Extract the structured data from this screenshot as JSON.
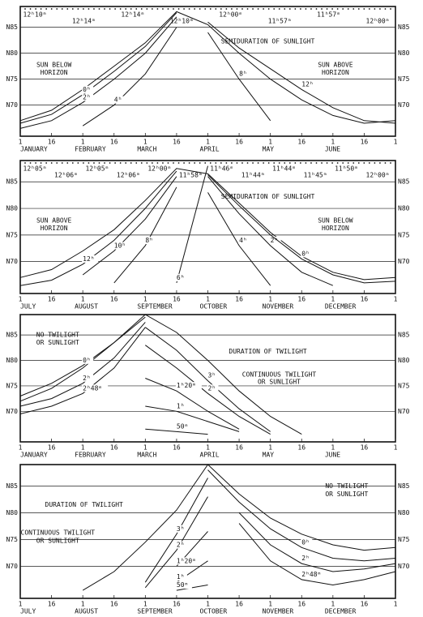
{
  "chart_data": [
    {
      "type": "line",
      "title": "SEMIDURATION OF SUNLIGHT",
      "annotations": [
        "SUN BELOW",
        "HORIZON",
        "SUN ABOVE",
        "HORIZON"
      ],
      "time_labels": [
        "12ʰ10ᵐ",
        "12ʰ14ᵐ",
        "12ʰ14ᵐ",
        "12ʰ10ᵐ",
        "12ʰ00ᵐ",
        "11ʰ57ᵐ",
        "11ʰ57ᵐ",
        "12ʰ00ᵐ"
      ],
      "categories": [
        "1",
        "16",
        "1",
        "16",
        "1",
        "16",
        "1",
        "16",
        "1",
        "16",
        "1",
        "16",
        "1"
      ],
      "months": [
        "JANUARY",
        "FEBRUARY",
        "MARCH",
        "APRIL",
        "MAY",
        "JUNE"
      ],
      "ylim": [
        64,
        89
      ],
      "yticks": [
        {
          "value": 70,
          "label": "N70"
        },
        {
          "value": 75,
          "label": "N75"
        },
        {
          "value": 80,
          "label": "N80"
        },
        {
          "value": 85,
          "label": "N85"
        }
      ],
      "series": [
        {
          "color": "#111111",
          "values": [
            67,
            69,
            73,
            77.5,
            82,
            88,
            85.5,
            80,
            75,
            71,
            68,
            66.5,
            67
          ]
        },
        {
          "name": "0ʰ",
          "color": "#111111",
          "values": [
            66.5,
            68.2,
            72,
            76.5,
            81.3,
            87.8,
            null,
            null,
            null,
            null,
            null,
            null,
            null
          ]
        },
        {
          "name": "2ʰ",
          "color": "#111111",
          "values": [
            65.5,
            67,
            70.5,
            75,
            80,
            87,
            null,
            null,
            null,
            null,
            null,
            null,
            null
          ]
        },
        {
          "name": "4ʰ",
          "color": "#111111",
          "values": [
            null,
            null,
            66,
            70,
            76,
            85,
            null,
            null,
            null,
            null,
            null,
            null,
            null
          ]
        },
        {
          "name": "8ʰ",
          "color": "#111111",
          "values": [
            null,
            null,
            null,
            null,
            null,
            null,
            84,
            75,
            67,
            null,
            null,
            null,
            null
          ]
        },
        {
          "name": "12ʰ",
          "color": "#111111",
          "values": [
            null,
            null,
            null,
            null,
            null,
            null,
            86,
            81,
            77,
            73,
            69.5,
            67,
            66.5
          ]
        }
      ]
    },
    {
      "type": "line",
      "title": "SEMIDURATION OF SUNLIGHT",
      "annotations": [
        "SUN ABOVE",
        "HORIZON",
        "SUN BELOW",
        "HORIZON"
      ],
      "time_labels": [
        "12ʰ05ᵐ",
        "12ʰ06ᵐ",
        "12ʰ05ᵐ",
        "12ʰ06ᵐ",
        "12ʰ00ᵐ",
        "11ʰ58ᵐ",
        "11ʰ46ᵐ",
        "11ʰ44ᵐ",
        "11ʰ44ᵐ",
        "11ʰ45ᵐ",
        "11ʰ50ᵐ",
        "12ʰ00ᵐ"
      ],
      "categories": [
        "1",
        "16",
        "1",
        "16",
        "1",
        "16",
        "1",
        "16",
        "1",
        "16",
        "1",
        "16",
        "1"
      ],
      "months": [
        "JULY",
        "AUGUST",
        "SEPTEMBER",
        "OCTOBER",
        "NOVEMBER",
        "DECEMBER"
      ],
      "ylim": [
        64,
        89
      ],
      "yticks": [
        {
          "value": 70,
          "label": "N70"
        },
        {
          "value": 75,
          "label": "N75"
        },
        {
          "value": 80,
          "label": "N80"
        },
        {
          "value": 85,
          "label": "N85"
        }
      ],
      "series": [
        {
          "color": "#111111",
          "values": [
            67,
            68.5,
            72,
            76,
            81.5,
            87.5,
            86.5,
            81,
            75.5,
            71,
            68,
            66.6,
            67
          ]
        },
        {
          "name": "12ʰ",
          "color": "#111111",
          "values": [
            65.5,
            66.5,
            69.5,
            74,
            80,
            87,
            null,
            null,
            null,
            null,
            null,
            null,
            null
          ]
        },
        {
          "name": "10ʰ",
          "color": "#111111",
          "values": [
            null,
            null,
            67.5,
            72,
            78,
            86,
            null,
            null,
            null,
            null,
            null,
            null,
            null
          ]
        },
        {
          "name": "8ʰ",
          "color": "#111111",
          "values": [
            null,
            null,
            null,
            66,
            73,
            84,
            null,
            null,
            null,
            null,
            null,
            null,
            null
          ]
        },
        {
          "name": "6ʰ",
          "color": "#111111",
          "values": [
            null,
            null,
            null,
            null,
            null,
            66,
            88,
            null,
            null,
            null,
            null,
            null,
            null
          ]
        },
        {
          "name": "4ʰ",
          "color": "#111111",
          "values": [
            null,
            null,
            null,
            null,
            null,
            null,
            83,
            73,
            65.5,
            null,
            null,
            null,
            null
          ]
        },
        {
          "name": "2ʰ",
          "color": "#111111",
          "values": [
            null,
            null,
            null,
            null,
            null,
            null,
            86,
            79,
            73,
            68,
            65.5,
            null,
            null
          ]
        },
        {
          "name": "0ʰ",
          "color": "#111111",
          "values": [
            null,
            null,
            null,
            null,
            null,
            null,
            86.3,
            80.5,
            75,
            70.5,
            67.5,
            66,
            66.3
          ]
        }
      ]
    },
    {
      "type": "line",
      "title": "DURATION OF TWILIGHT",
      "annotations": [
        "NO TWILIGHT",
        "OR SUNLIGHT",
        "CONTINUOUS TWILIGHT",
        "OR SUNLIGHT"
      ],
      "categories": [
        "1",
        "16",
        "1",
        "16",
        "1",
        "16",
        "1",
        "16",
        "1",
        "16",
        "1",
        "16",
        "1"
      ],
      "months": [
        "JANUARY",
        "FEBRUARY",
        "MARCH",
        "APRIL",
        "MAY",
        "JUNE"
      ],
      "ylim": [
        64,
        89
      ],
      "yticks": [
        {
          "value": 70,
          "label": "N70"
        },
        {
          "value": 75,
          "label": "N75"
        },
        {
          "value": 80,
          "label": "N80"
        },
        {
          "value": 85,
          "label": "N85"
        }
      ],
      "series": [
        {
          "color": "#111111",
          "values": [
            72,
            74.5,
            78.5,
            83.5,
            89,
            85.5,
            80,
            74,
            69,
            65.5,
            null,
            null,
            null
          ]
        },
        {
          "name": "0ʰ",
          "color": "#111111",
          "values": [
            73,
            75.5,
            79,
            83.5,
            88.5,
            null,
            null,
            null,
            null,
            null,
            null,
            null,
            null
          ]
        },
        {
          "name": "2ʰ",
          "color": "#111111",
          "values": [
            71,
            72.5,
            75.5,
            80.5,
            87.5,
            null,
            null,
            null,
            null,
            null,
            null,
            null,
            null
          ]
        },
        {
          "name": "2ʰ48ᵐ",
          "color": "#111111",
          "values": [
            69.5,
            71,
            73.5,
            78.5,
            86.5,
            null,
            null,
            null,
            null,
            null,
            null,
            null,
            null
          ]
        },
        {
          "name": "3ʰ",
          "color": "#111111",
          "values": [
            null,
            null,
            null,
            null,
            86.5,
            82,
            76,
            70.5,
            66,
            null,
            null,
            null,
            null
          ]
        },
        {
          "name": "2ʰ",
          "color": "#111111",
          "values": [
            null,
            null,
            null,
            null,
            83,
            78.5,
            73.5,
            69,
            65.5,
            null,
            null,
            null,
            null
          ]
        },
        {
          "name": "1ʰ20ᵐ",
          "color": "#111111",
          "values": [
            null,
            null,
            null,
            null,
            76.5,
            74,
            70,
            66.5,
            null,
            null,
            null,
            null,
            null
          ]
        },
        {
          "name": "1ʰ",
          "color": "#111111",
          "values": [
            null,
            null,
            null,
            null,
            71,
            70,
            68,
            66,
            null,
            null,
            null,
            null,
            null
          ]
        },
        {
          "name": "50ᵐ",
          "color": "#111111",
          "values": [
            null,
            null,
            null,
            null,
            66.5,
            66,
            65.5,
            null,
            null,
            null,
            null,
            null,
            null
          ]
        }
      ]
    },
    {
      "type": "line",
      "title": "DURATION OF TWILIGHT",
      "annotations": [
        "NO TWILIGHT",
        "OR SUNLIGHT",
        "CONTINUOUS TWILIGHT",
        "OR SUNLIGHT"
      ],
      "categories": [
        "1",
        "16",
        "1",
        "16",
        "1",
        "16",
        "1",
        "16",
        "1",
        "16",
        "1",
        "16",
        "1"
      ],
      "months": [
        "JULY",
        "AUGUST",
        "SEPTEMBER",
        "OCTOBER",
        "NOVEMBER",
        "DECEMBER"
      ],
      "ylim": [
        64,
        89
      ],
      "yticks": [
        {
          "value": 70,
          "label": "N70"
        },
        {
          "value": 75,
          "label": "N75"
        },
        {
          "value": 80,
          "label": "N80"
        },
        {
          "value": 85,
          "label": "N85"
        }
      ],
      "series": [
        {
          "color": "#111111",
          "values": [
            null,
            null,
            65.5,
            69,
            74.5,
            80.5,
            89,
            83.5,
            79,
            76,
            74,
            73,
            73.5
          ]
        },
        {
          "name": "3ʰ",
          "color": "#111111",
          "values": [
            null,
            null,
            null,
            null,
            67,
            76,
            86.5,
            null,
            null,
            null,
            null,
            null,
            null
          ]
        },
        {
          "name": "2ʰ",
          "color": "#111111",
          "values": [
            null,
            null,
            null,
            null,
            66,
            73,
            83,
            null,
            null,
            null,
            null,
            null,
            null
          ]
        },
        {
          "name": "1ʰ20ᵐ",
          "color": "#111111",
          "values": [
            null,
            null,
            null,
            null,
            null,
            70,
            76.5,
            null,
            null,
            null,
            null,
            null,
            null
          ]
        },
        {
          "name": "1ʰ",
          "color": "#111111",
          "values": [
            null,
            null,
            null,
            null,
            null,
            67,
            71,
            null,
            null,
            null,
            null,
            null,
            null
          ]
        },
        {
          "name": "50ᵐ",
          "color": "#111111",
          "values": [
            null,
            null,
            null,
            null,
            null,
            65.5,
            66.5,
            null,
            null,
            null,
            null,
            null,
            null
          ]
        },
        {
          "name": "0ʰ",
          "color": "#111111",
          "values": [
            null,
            null,
            null,
            null,
            null,
            null,
            88,
            82,
            77,
            73.5,
            71.5,
            71,
            71.5
          ]
        },
        {
          "name": "2ʰ",
          "color": "#111111",
          "values": [
            null,
            null,
            null,
            null,
            null,
            null,
            null,
            80,
            74,
            70.5,
            69,
            69.5,
            70.5
          ]
        },
        {
          "name": "2ʰ48ᵐ",
          "color": "#111111",
          "values": [
            null,
            null,
            null,
            null,
            null,
            null,
            null,
            78,
            71,
            67.5,
            66.5,
            67.5,
            69
          ]
        }
      ]
    }
  ]
}
